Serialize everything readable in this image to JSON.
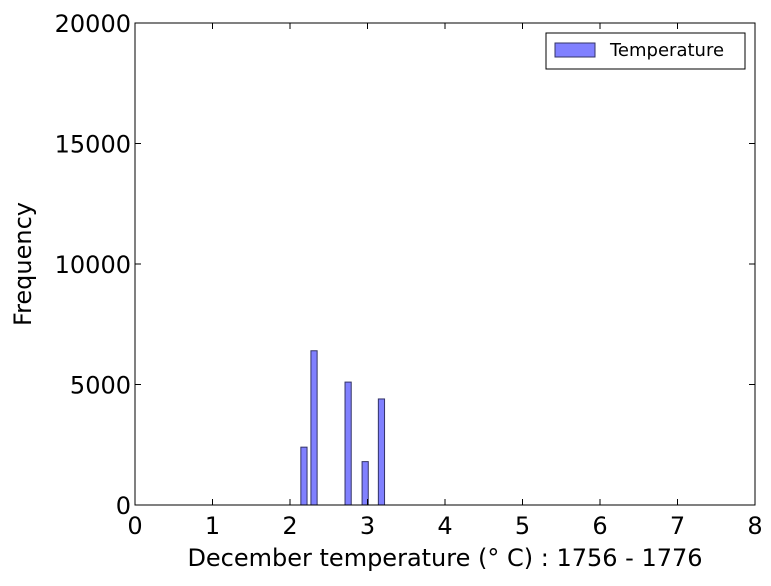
{
  "chart_data": {
    "type": "bar",
    "subtype": "histogram",
    "title": "",
    "xlabel": "December temperature (° C) : 1756 - 1776",
    "ylabel": "Frequency",
    "xlim": [
      0,
      8
    ],
    "ylim": [
      0,
      20000
    ],
    "xticks": [
      "0",
      "1",
      "2",
      "3",
      "4",
      "5",
      "6",
      "7",
      "8"
    ],
    "yticks": [
      "0",
      "5000",
      "10000",
      "15000",
      "20000"
    ],
    "grid": false,
    "legend": {
      "position": "top-right",
      "entries": [
        "Temperature"
      ]
    },
    "bar_color": "#8080ff",
    "bar_edge_color": "#333366",
    "bar_width": 0.08,
    "series": [
      {
        "name": "Temperature",
        "x": [
          2.18,
          2.31,
          2.75,
          2.97,
          3.18
        ],
        "values": [
          2400,
          6400,
          5100,
          1800,
          4400
        ]
      }
    ]
  }
}
